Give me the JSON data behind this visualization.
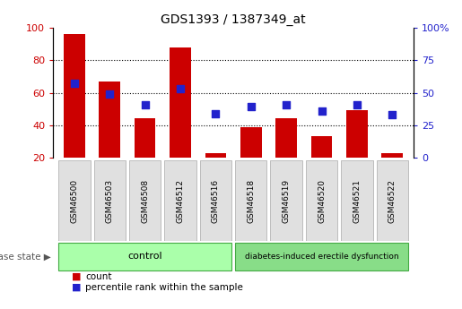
{
  "title": "GDS1393 / 1387349_at",
  "samples": [
    "GSM46500",
    "GSM46503",
    "GSM46508",
    "GSM46512",
    "GSM46516",
    "GSM46518",
    "GSM46519",
    "GSM46520",
    "GSM46521",
    "GSM46522"
  ],
  "count": [
    96,
    67,
    44,
    88,
    23,
    39,
    44,
    33,
    49,
    23
  ],
  "percentile": [
    57,
    49,
    41,
    53,
    34,
    39,
    41,
    36,
    41,
    33
  ],
  "bar_color": "#cc0000",
  "square_color": "#2222cc",
  "ylim_left": [
    20,
    100
  ],
  "ylim_right": [
    0,
    100
  ],
  "yticks_left": [
    20,
    40,
    60,
    80,
    100
  ],
  "yticks_right": [
    0,
    25,
    50,
    75,
    100
  ],
  "ytick_labels_right": [
    "0",
    "25",
    "50",
    "75",
    "100%"
  ],
  "grid_values": [
    40,
    60,
    80
  ],
  "control_samples": 5,
  "control_label": "control",
  "disease_label": "diabetes-induced erectile dysfunction",
  "disease_state_label": "disease state",
  "legend_count": "count",
  "legend_percentile": "percentile rank within the sample",
  "control_bg": "#aaffaa",
  "disease_bg": "#88dd88",
  "xlabel_bg": "#e0e0e0",
  "bar_width": 0.6,
  "square_size": 30
}
